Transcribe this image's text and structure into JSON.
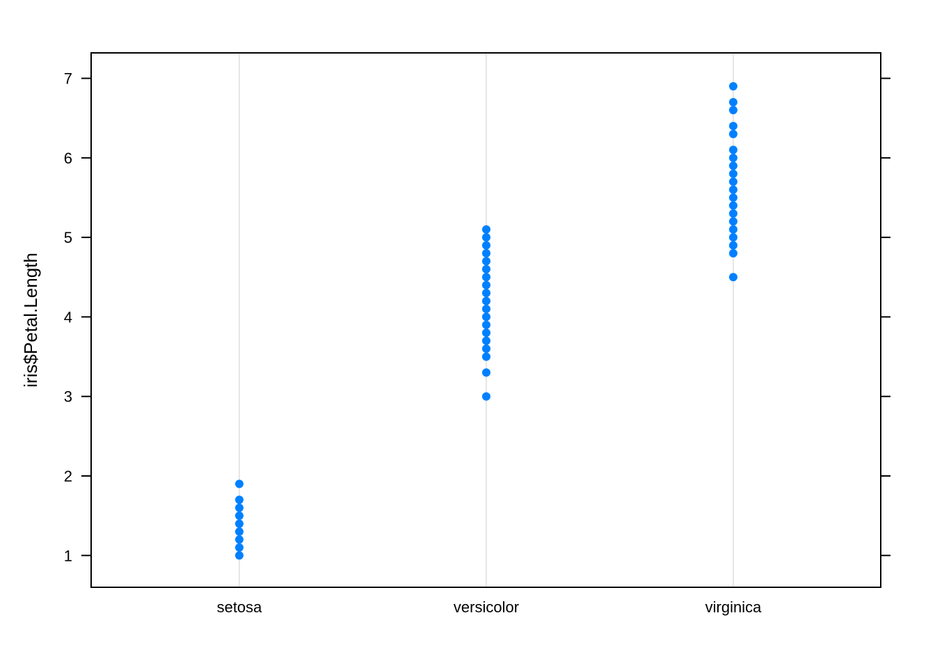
{
  "chart_data": {
    "type": "scatter",
    "title": "",
    "xlabel": "",
    "ylabel": "iris$Petal.Length",
    "categories": [
      "setosa",
      "versicolor",
      "virginica"
    ],
    "ylim": [
      0.6,
      7.32
    ],
    "yticks": [
      1,
      2,
      3,
      4,
      5,
      6,
      7
    ],
    "grid": "vertical lines at categories",
    "point_color": "#0080ff",
    "grid_color": "#e6e6e6",
    "series": [
      {
        "category": "setosa",
        "values": [
          1.0,
          1.1,
          1.2,
          1.3,
          1.4,
          1.5,
          1.6,
          1.7,
          1.9
        ]
      },
      {
        "category": "versicolor",
        "values": [
          3.0,
          3.3,
          3.5,
          3.6,
          3.7,
          3.8,
          3.9,
          4.0,
          4.1,
          4.2,
          4.3,
          4.4,
          4.5,
          4.6,
          4.7,
          4.8,
          4.9,
          5.0,
          5.1
        ]
      },
      {
        "category": "virginica",
        "values": [
          4.5,
          4.8,
          4.9,
          5.0,
          5.1,
          5.2,
          5.3,
          5.4,
          5.5,
          5.6,
          5.7,
          5.8,
          5.9,
          6.0,
          6.1,
          6.3,
          6.4,
          6.6,
          6.7,
          6.9
        ]
      }
    ]
  }
}
